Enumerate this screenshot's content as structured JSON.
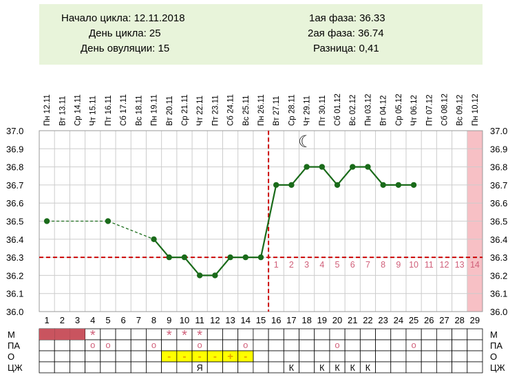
{
  "info": {
    "cycle_start_label": "Начало цикла:",
    "cycle_start_value": "12.11.2018",
    "cycle_day_label": "День цикла:",
    "cycle_day_value": "25",
    "ovulation_day_label": "День овуляции:",
    "ovulation_day_value": "15",
    "phase1_label": "1ая фаза:",
    "phase1_value": "36.33",
    "phase2_label": "2ая фаза:",
    "phase2_value": "36.74",
    "difference_label": "Разница:",
    "difference_value": "0,41"
  },
  "colors": {
    "info_bg": "#e8f4da",
    "line": "#1a6b1a",
    "marker": "#1a6b1a",
    "coverline": "#cc0000",
    "period": "#c9545f",
    "predicted_period": "#f7c0c5",
    "symbol": "#d0607a",
    "mucus_bg": "#ffff00",
    "mucus_text": "#e6a200",
    "grid": "#cccccc"
  },
  "chart_data": {
    "type": "line",
    "days": [
      1,
      2,
      3,
      4,
      5,
      6,
      7,
      8,
      9,
      10,
      11,
      12,
      13,
      14,
      15,
      16,
      17,
      18,
      19,
      20,
      21,
      22,
      23,
      24,
      25,
      26,
      27,
      28,
      29
    ],
    "dates": [
      "Пн 12.11",
      "Вт 13.11",
      "Ср 14.11",
      "Чт 15.11",
      "Пт 16.11",
      "Сб 17.11",
      "Вс 18.11",
      "Пн 19.11",
      "Вт 20.11",
      "Ср 21.11",
      "Чт 22.11",
      "Пт 23.11",
      "Сб 24.11",
      "Вс 25.11",
      "Пн 26.11",
      "Вт 27.11",
      "Ср 28.11",
      "Чт 29.11",
      "Пт 30.11",
      "Сб 01.12",
      "Вс 02.12",
      "Пн 03.12",
      "Вт 04.12",
      "Ср 05.12",
      "Чт 06.12",
      "Пт 07.12",
      "Сб 08.12",
      "Вс 09.12",
      "Пн 10.12"
    ],
    "temperatures": [
      36.5,
      null,
      null,
      null,
      36.5,
      null,
      null,
      36.4,
      36.3,
      36.3,
      36.2,
      36.2,
      36.3,
      36.3,
      36.3,
      36.7,
      36.7,
      36.8,
      36.8,
      36.7,
      36.8,
      36.8,
      36.7,
      36.7,
      36.7,
      null,
      null,
      null,
      null
    ],
    "ylim": [
      36.0,
      37.0
    ],
    "yticks": [
      "36.0",
      "36.1",
      "36.2",
      "36.3",
      "36.4",
      "36.5",
      "36.6",
      "36.7",
      "36.8",
      "36.9",
      "37.0"
    ],
    "coverline": 36.3,
    "ovulation_day": 15,
    "luteal_day_labels": [
      "1",
      "2",
      "3",
      "4",
      "5",
      "6",
      "7",
      "8",
      "9",
      "10",
      "11",
      "12",
      "13",
      "14"
    ],
    "predicted_period_day": 29,
    "moon_day": 18,
    "moon_symbol": "☾",
    "grid": true
  },
  "table": {
    "row_labels": [
      "М",
      "ПА",
      "О",
      "ЦЖ"
    ],
    "period_days": [
      1,
      2,
      3
    ],
    "m_star_days": [
      4,
      9,
      10,
      11
    ],
    "pa_days": [
      4,
      5,
      8,
      11,
      14,
      20,
      25
    ],
    "mucus_days": [
      9,
      10,
      11,
      12,
      13,
      14
    ],
    "mucus_symbols": [
      "-",
      "-",
      "-",
      "-",
      "+",
      "-"
    ],
    "ya_days": [
      11
    ],
    "cj_k_days": [
      17,
      19,
      20,
      21,
      22
    ],
    "star_symbol": "*",
    "pa_symbol": "o",
    "ya_symbol": "Я",
    "k_symbol": "К"
  }
}
